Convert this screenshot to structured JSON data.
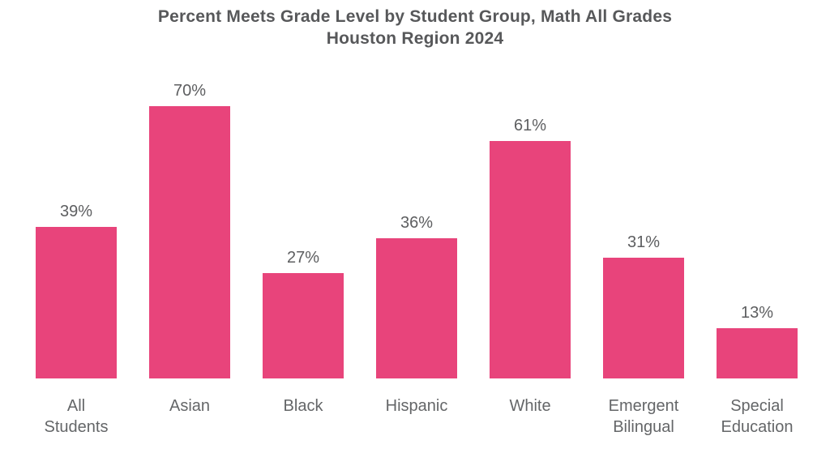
{
  "title": {
    "line1": "Percent Meets Grade Level by Student Group, Math All Grades",
    "line2": "Houston Region 2024"
  },
  "chart_data": {
    "type": "bar",
    "title": "Percent Meets Grade Level by Student Group, Math All Grades — Houston Region 2024",
    "categories": [
      "All Students",
      "Asian",
      "Black",
      "Hispanic",
      "White",
      "Emergent Bilingual",
      "Special Education"
    ],
    "category_lines": [
      [
        "All",
        "Students"
      ],
      [
        "Asian"
      ],
      [
        "Black"
      ],
      [
        "Hispanic"
      ],
      [
        "White"
      ],
      [
        "Emergent",
        "Bilingual"
      ],
      [
        "Special",
        "Education"
      ]
    ],
    "values": [
      39,
      70,
      27,
      36,
      61,
      31,
      13
    ],
    "value_labels": [
      "39%",
      "70%",
      "27%",
      "36%",
      "61%",
      "31%",
      "13%"
    ],
    "xlabel": "",
    "ylabel": "",
    "ylim": [
      0,
      75
    ],
    "grid": false,
    "legend": false,
    "value_label_position": "above-bar",
    "colors": {
      "bar": "#E8447B",
      "title_text": "#57585A",
      "value_label_text": "#5D5E60",
      "category_label_text": "#646668",
      "background": "#FFFFFF"
    }
  }
}
